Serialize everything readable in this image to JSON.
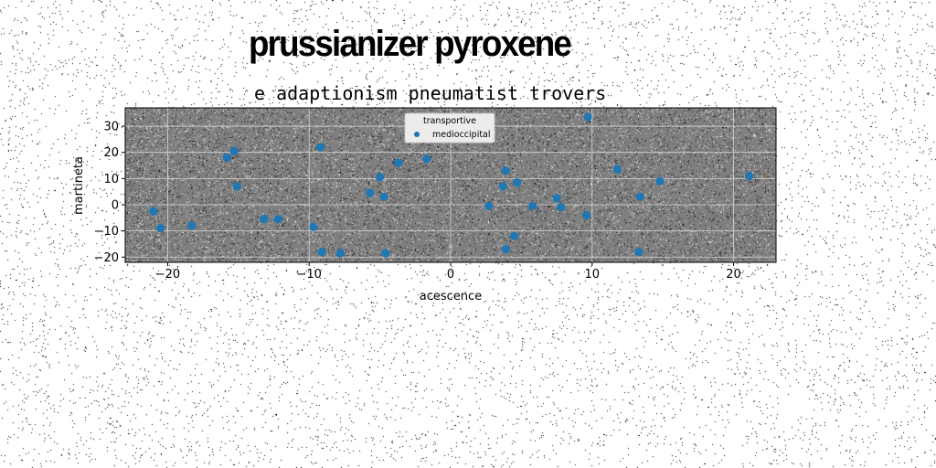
{
  "header": {
    "suptitle": "prussianizer pyroxene"
  },
  "chart_data": {
    "type": "scatter",
    "title": "e adaptionism pneumatist trovers",
    "xlabel": "acescence",
    "ylabel": "martineta",
    "xlim": [
      -23,
      23
    ],
    "ylim": [
      -22,
      37
    ],
    "xticks": [
      -20,
      -10,
      0,
      10,
      20
    ],
    "xtick_labels": [
      "−20",
      "−10",
      "0",
      "10",
      "20"
    ],
    "yticks": [
      -20,
      -10,
      0,
      10,
      20,
      30
    ],
    "ytick_labels": [
      "−20",
      "−10",
      "0",
      "10",
      "20",
      "30"
    ],
    "grid": true,
    "legend": {
      "title": "transportive",
      "placement": "top-center",
      "entries": [
        "medioccipital"
      ]
    },
    "series": [
      {
        "name": "medioccipital",
        "color": "#1f77b4",
        "points": [
          [
            -21.0,
            -2.5
          ],
          [
            -20.5,
            -9
          ],
          [
            -18.3,
            -8
          ],
          [
            -15.8,
            18
          ],
          [
            -15.3,
            20.5
          ],
          [
            -15.1,
            7
          ],
          [
            -13.2,
            -5.5
          ],
          [
            -12.2,
            -5.5
          ],
          [
            -9.7,
            -8.5
          ],
          [
            -9.2,
            22
          ],
          [
            -9.1,
            -18
          ],
          [
            -7.8,
            -18.5
          ],
          [
            -5.7,
            4.5
          ],
          [
            -5.0,
            10.5
          ],
          [
            -4.7,
            3
          ],
          [
            -4.6,
            -18.5
          ],
          [
            -3.7,
            16
          ],
          [
            -1.7,
            17.5
          ],
          [
            2.7,
            -0.5
          ],
          [
            3.7,
            7
          ],
          [
            3.9,
            13
          ],
          [
            3.9,
            -17
          ],
          [
            4.5,
            -12
          ],
          [
            4.7,
            8.5
          ],
          [
            5.8,
            -0.5
          ],
          [
            7.5,
            2.5
          ],
          [
            7.8,
            -1
          ],
          [
            9.6,
            -4
          ],
          [
            9.7,
            33.5
          ],
          [
            11.8,
            13.5
          ],
          [
            13.3,
            -18
          ],
          [
            13.4,
            3
          ],
          [
            14.8,
            9
          ],
          [
            21.1,
            11
          ]
        ]
      }
    ]
  }
}
